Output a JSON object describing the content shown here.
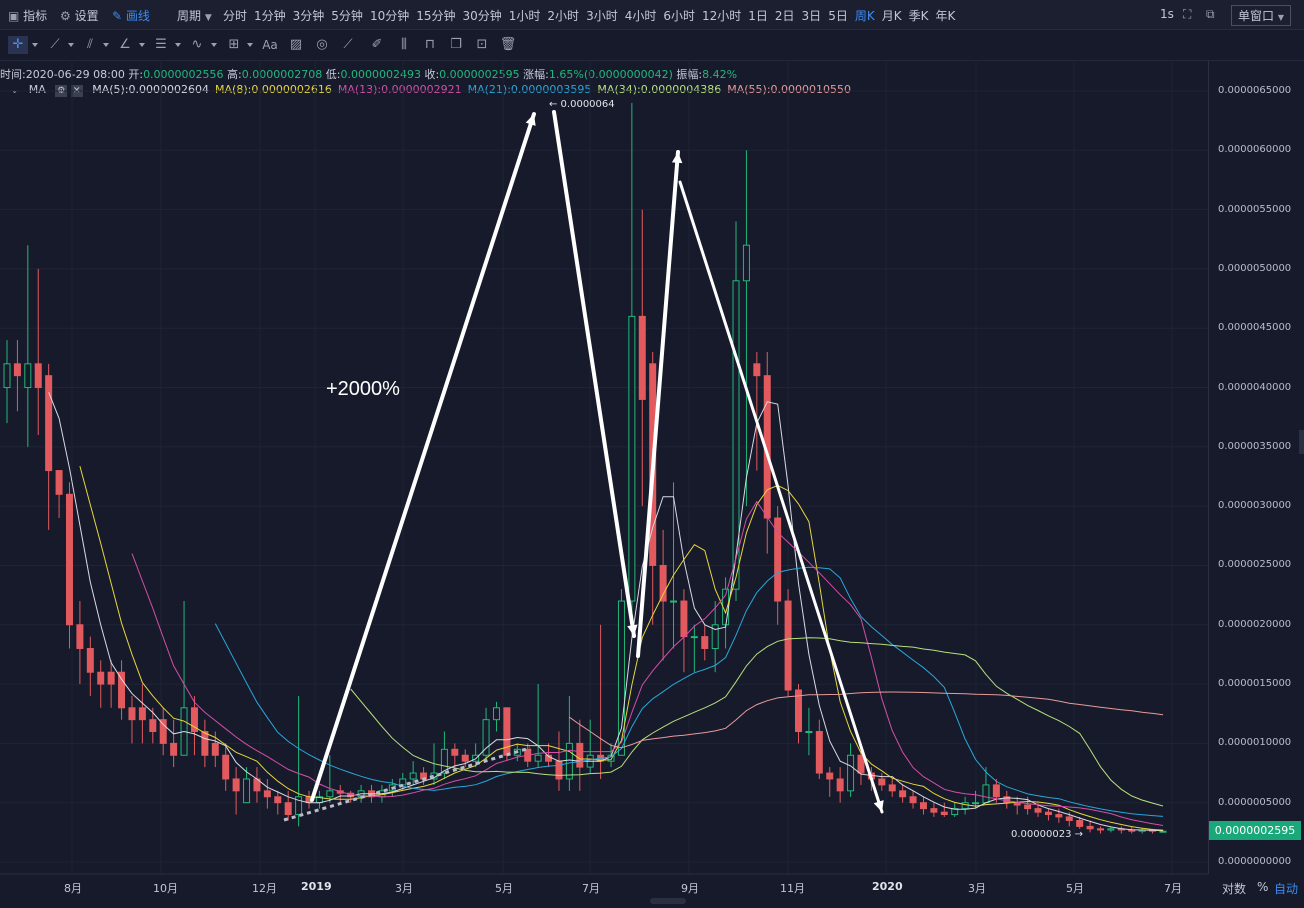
{
  "topbar": {
    "indicator": "指标",
    "settings": "设置",
    "drawing": "画线",
    "period": "周期",
    "periods": [
      "分时",
      "1分钟",
      "3分钟",
      "5分钟",
      "10分钟",
      "15分钟",
      "30分钟",
      "1小时",
      "2小时",
      "3小时",
      "4小时",
      "6小时",
      "12小时",
      "1日",
      "2日",
      "3日",
      "5日",
      "周K",
      "月K",
      "季K",
      "年K"
    ],
    "active_period": "周K",
    "refresh": "1s",
    "window_mode": "单窗口"
  },
  "toolbar": {
    "text_tool": "Aa",
    "icons": [
      "crosshair-icon",
      "trendline-icon",
      "parallel-channel-icon",
      "angle-icon",
      "horizontal-lines-icon",
      "wave-icon",
      "rect-icon",
      "text-icon",
      "fib-icon",
      "eraser-ring-icon",
      "ruler-icon",
      "brush-icon",
      "candle-pattern-icon",
      "lock-icon",
      "copy-icon",
      "screenshot-icon",
      "trash-icon"
    ]
  },
  "info": {
    "time_label": "时间:",
    "time": "2020-06-29 08:00",
    "open_label": "开:",
    "open": "0.0000002556",
    "high_label": "高:",
    "high": "0.0000002708",
    "low_label": "低:",
    "low": "0.0000002493",
    "close_label": "收:",
    "close": "0.0000002595",
    "change_label": "涨幅:",
    "change": "1.65%(0.0000000042)",
    "amp_label": "振幅:",
    "amp": "8.42%"
  },
  "ma": {
    "name": "MA",
    "items": [
      {
        "label": "MA(5):0.0000002604",
        "color": "#d8dbe4"
      },
      {
        "label": "MA(8):0.0000002616",
        "color": "#e8d63a"
      },
      {
        "label": "MA(13):0.0000002921",
        "color": "#d44fa8"
      },
      {
        "label": "MA(21):0.0000003595",
        "color": "#2aa6d9"
      },
      {
        "label": "MA(34):0.0000004386",
        "color": "#b8e07a"
      },
      {
        "label": "MA(55):0.0000010550",
        "color": "#e89a9a"
      }
    ]
  },
  "chart_data": {
    "type": "candlestick",
    "title": "周K",
    "annotation": "+2000%",
    "high_marker": "← 0.0000064",
    "low_marker": "0.00000023 →",
    "current_price": "0.0000002595",
    "ylim": [
      0,
      6.5e-06
    ],
    "y_ticks": [
      "0.0000065000",
      "0.0000060000",
      "0.0000055000",
      "0.0000050000",
      "0.0000045000",
      "0.0000040000",
      "0.0000035000",
      "0.0000030000",
      "0.0000025000",
      "0.0000020000",
      "0.0000015000",
      "0.0000010000",
      "0.0000005000",
      "0.0000000000"
    ],
    "x_ticks": [
      "8月",
      "10月",
      "12月",
      "2019",
      "3月",
      "5月",
      "7月",
      "9月",
      "11月",
      "2020",
      "3月",
      "5月",
      "7月"
    ],
    "candles": [
      [
        4.0,
        4.2,
        4.4,
        3.7
      ],
      [
        4.2,
        4.1,
        4.4,
        3.8
      ],
      [
        4.0,
        4.2,
        5.2,
        3.5
      ],
      [
        4.2,
        4.0,
        5.0,
        3.6
      ],
      [
        4.1,
        3.3,
        4.2,
        2.8
      ],
      [
        3.3,
        3.1,
        3.3,
        2.9
      ],
      [
        3.1,
        2.0,
        3.2,
        1.8
      ],
      [
        2.0,
        1.8,
        2.2,
        1.5
      ],
      [
        1.8,
        1.6,
        1.9,
        1.4
      ],
      [
        1.6,
        1.5,
        1.7,
        1.3
      ],
      [
        1.6,
        1.5,
        1.7,
        1.3
      ],
      [
        1.6,
        1.3,
        1.7,
        1.2
      ],
      [
        1.3,
        1.2,
        1.4,
        1.0
      ],
      [
        1.3,
        1.2,
        1.5,
        1.0
      ],
      [
        1.2,
        1.1,
        1.3,
        1.0
      ],
      [
        1.2,
        1.0,
        1.3,
        0.9
      ],
      [
        1.0,
        0.9,
        1.2,
        0.8
      ],
      [
        0.9,
        1.3,
        2.2,
        0.9
      ],
      [
        1.3,
        1.1,
        1.4,
        0.9
      ],
      [
        1.1,
        0.9,
        1.2,
        0.8
      ],
      [
        1.0,
        0.9,
        1.1,
        0.8
      ],
      [
        0.9,
        0.7,
        1.0,
        0.6
      ],
      [
        0.7,
        0.6,
        0.8,
        0.4
      ],
      [
        0.5,
        0.7,
        0.8,
        0.5
      ],
      [
        0.7,
        0.6,
        0.8,
        0.5
      ],
      [
        0.6,
        0.55,
        0.7,
        0.45
      ],
      [
        0.55,
        0.5,
        0.6,
        0.4
      ],
      [
        0.5,
        0.4,
        0.6,
        0.35
      ],
      [
        0.4,
        0.55,
        1.4,
        0.3
      ],
      [
        0.55,
        0.5,
        0.6,
        0.45
      ],
      [
        0.5,
        0.55,
        0.6,
        0.45
      ],
      [
        0.55,
        0.6,
        0.9,
        0.5
      ],
      [
        0.6,
        0.58,
        0.65,
        0.5
      ],
      [
        0.58,
        0.55,
        0.6,
        0.5
      ],
      [
        0.55,
        0.6,
        0.65,
        0.5
      ],
      [
        0.6,
        0.55,
        0.65,
        0.5
      ],
      [
        0.55,
        0.6,
        0.65,
        0.5
      ],
      [
        0.6,
        0.65,
        0.7,
        0.55
      ],
      [
        0.65,
        0.7,
        0.75,
        0.6
      ],
      [
        0.7,
        0.75,
        0.85,
        0.65
      ],
      [
        0.75,
        0.7,
        0.8,
        0.65
      ],
      [
        0.7,
        0.75,
        1.0,
        0.65
      ],
      [
        0.75,
        0.95,
        1.1,
        0.7
      ],
      [
        0.95,
        0.9,
        1.0,
        0.8
      ],
      [
        0.9,
        0.85,
        0.95,
        0.8
      ],
      [
        0.85,
        0.9,
        1.0,
        0.8
      ],
      [
        0.9,
        1.2,
        1.3,
        0.85
      ],
      [
        1.2,
        1.3,
        1.35,
        1.1
      ],
      [
        1.3,
        0.9,
        1.3,
        0.85
      ],
      [
        0.9,
        0.95,
        1.0,
        0.85
      ],
      [
        0.95,
        0.85,
        1.0,
        0.8
      ],
      [
        0.85,
        0.9,
        1.5,
        0.8
      ],
      [
        0.9,
        0.85,
        1.0,
        0.8
      ],
      [
        0.85,
        0.7,
        1.1,
        0.6
      ],
      [
        0.7,
        1.0,
        1.4,
        0.6
      ],
      [
        1.0,
        0.8,
        1.2,
        0.6
      ],
      [
        0.8,
        0.9,
        1.2,
        0.75
      ],
      [
        0.9,
        0.85,
        2.0,
        0.7
      ],
      [
        0.85,
        0.9,
        1.0,
        0.8
      ],
      [
        0.9,
        2.2,
        2.3,
        0.9
      ],
      [
        2.2,
        4.6,
        6.4,
        2.1
      ],
      [
        4.6,
        3.9,
        5.5,
        3.0
      ],
      [
        4.2,
        2.5,
        4.3,
        2.0
      ],
      [
        2.5,
        2.2,
        2.8,
        1.7
      ],
      [
        2.2,
        2.2,
        3.2,
        1.8
      ],
      [
        2.2,
        1.9,
        2.3,
        1.6
      ],
      [
        1.9,
        1.9,
        2.0,
        1.6
      ],
      [
        1.9,
        1.8,
        2.0,
        1.7
      ],
      [
        1.8,
        2.0,
        2.2,
        1.6
      ],
      [
        2.0,
        2.3,
        2.4,
        1.8
      ],
      [
        2.3,
        4.9,
        5.4,
        2.2
      ],
      [
        4.9,
        5.2,
        6.0,
        3.0
      ],
      [
        4.2,
        4.1,
        4.3,
        3.3
      ],
      [
        4.1,
        2.9,
        4.3,
        2.6
      ],
      [
        2.9,
        2.2,
        3.0,
        2.0
      ],
      [
        2.2,
        1.45,
        2.3,
        1.4
      ],
      [
        1.45,
        1.1,
        1.5,
        1.0
      ],
      [
        1.1,
        1.1,
        1.3,
        0.9
      ],
      [
        1.1,
        0.75,
        1.2,
        0.7
      ],
      [
        0.75,
        0.7,
        0.8,
        0.55
      ],
      [
        0.7,
        0.6,
        0.8,
        0.5
      ],
      [
        0.6,
        0.9,
        1.0,
        0.55
      ],
      [
        0.9,
        0.75,
        1.0,
        0.65
      ],
      [
        0.75,
        0.7,
        0.8,
        0.6
      ],
      [
        0.7,
        0.65,
        0.75,
        0.6
      ],
      [
        0.65,
        0.6,
        0.7,
        0.55
      ],
      [
        0.6,
        0.55,
        0.65,
        0.5
      ],
      [
        0.55,
        0.5,
        0.6,
        0.45
      ],
      [
        0.5,
        0.45,
        0.55,
        0.4
      ],
      [
        0.45,
        0.42,
        0.5,
        0.38
      ],
      [
        0.42,
        0.4,
        0.5,
        0.38
      ],
      [
        0.4,
        0.45,
        0.5,
        0.38
      ],
      [
        0.45,
        0.5,
        0.55,
        0.4
      ],
      [
        0.5,
        0.5,
        0.6,
        0.45
      ],
      [
        0.5,
        0.65,
        0.8,
        0.5
      ],
      [
        0.65,
        0.55,
        0.7,
        0.5
      ],
      [
        0.55,
        0.5,
        0.6,
        0.45
      ],
      [
        0.5,
        0.48,
        0.55,
        0.4
      ],
      [
        0.48,
        0.45,
        0.55,
        0.4
      ],
      [
        0.45,
        0.42,
        0.5,
        0.38
      ],
      [
        0.42,
        0.4,
        0.45,
        0.35
      ],
      [
        0.4,
        0.38,
        0.45,
        0.33
      ],
      [
        0.38,
        0.35,
        0.42,
        0.3
      ],
      [
        0.35,
        0.3,
        0.38,
        0.28
      ],
      [
        0.3,
        0.28,
        0.35,
        0.25
      ],
      [
        0.28,
        0.27,
        0.3,
        0.24
      ],
      [
        0.27,
        0.28,
        0.3,
        0.25
      ],
      [
        0.28,
        0.27,
        0.3,
        0.24
      ],
      [
        0.27,
        0.26,
        0.3,
        0.24
      ],
      [
        0.26,
        0.27,
        0.29,
        0.24
      ],
      [
        0.27,
        0.26,
        0.28,
        0.24
      ],
      [
        0.2556,
        0.2595,
        0.2708,
        0.2493
      ]
    ]
  }
}
